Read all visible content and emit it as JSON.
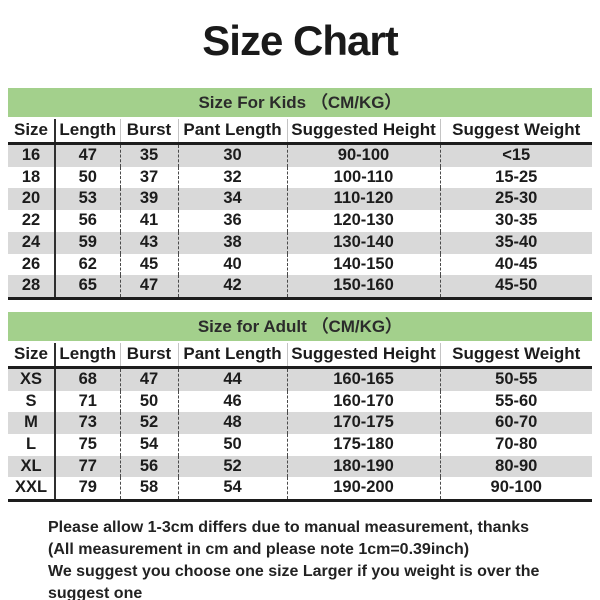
{
  "page": {
    "title": "Size Chart"
  },
  "chart_data": [
    {
      "type": "table",
      "title": "Size For Kids （CM/KG）",
      "columns": [
        "Size",
        "Length",
        "Burst",
        "Pant Length",
        "Suggested Height",
        "Suggest Weight"
      ],
      "rows": [
        [
          "16",
          "47",
          "35",
          "30",
          "90-100",
          "<15"
        ],
        [
          "18",
          "50",
          "37",
          "32",
          "100-110",
          "15-25"
        ],
        [
          "20",
          "53",
          "39",
          "34",
          "110-120",
          "25-30"
        ],
        [
          "22",
          "56",
          "41",
          "36",
          "120-130",
          "30-35"
        ],
        [
          "24",
          "59",
          "43",
          "38",
          "130-140",
          "35-40"
        ],
        [
          "26",
          "62",
          "45",
          "40",
          "140-150",
          "40-45"
        ],
        [
          "28",
          "65",
          "47",
          "42",
          "150-160",
          "45-50"
        ]
      ]
    },
    {
      "type": "table",
      "title": "Size for Adult （CM/KG）",
      "columns": [
        "Size",
        "Length",
        "Burst",
        "Pant Length",
        "Suggested Height",
        "Suggest Weight"
      ],
      "rows": [
        [
          "XS",
          "68",
          "47",
          "44",
          "160-165",
          "50-55"
        ],
        [
          "S",
          "71",
          "50",
          "46",
          "160-170",
          "55-60"
        ],
        [
          "M",
          "73",
          "52",
          "48",
          "170-175",
          "60-70"
        ],
        [
          "L",
          "75",
          "54",
          "50",
          "175-180",
          "70-80"
        ],
        [
          "XL",
          "77",
          "56",
          "52",
          "180-190",
          "80-90"
        ],
        [
          "XXL",
          "79",
          "58",
          "54",
          "190-200",
          "90-100"
        ]
      ]
    }
  ],
  "footer": {
    "lines": [
      "Please allow 1-3cm differs due to manual measurement, thanks",
      "(All measurement in cm and please note 1cm=0.39inch)",
      "We suggest you choose one size Larger if you weight is over the suggest one"
    ]
  },
  "colors": {
    "section_band_green": "#a3d08c",
    "alternate_row_gray": "#d9d9d9",
    "text_black": "#1c1c1c"
  }
}
